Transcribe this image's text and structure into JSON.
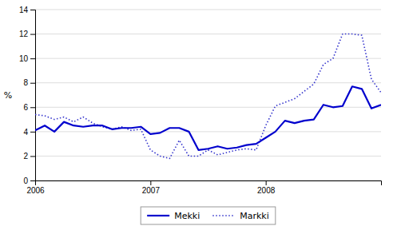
{
  "chart_data": {
    "type": "line",
    "ylabel": "%",
    "x": [
      2006,
      2006.0833333333333,
      2006.1666666666667,
      2006.25,
      2006.3333333333333,
      2006.4166666666667,
      2006.5,
      2006.5833333333333,
      2006.6666666666667,
      2006.75,
      2006.8333333333333,
      2006.9166666666667,
      2007,
      2007.0833333333333,
      2007.1666666666667,
      2007.25,
      2007.3333333333333,
      2007.4166666666667,
      2007.5,
      2007.5833333333333,
      2007.6666666666667,
      2007.75,
      2007.8333333333333,
      2007.9166666666667,
      2008,
      2008.0833333333333,
      2008.1666666666667,
      2008.25,
      2008.3333333333333,
      2008.4166666666667,
      2008.5,
      2008.5833333333333,
      2008.6666666666667,
      2008.75,
      2008.8333333333333,
      2008.9166666666667,
      2009
    ],
    "series": [
      {
        "name": "Mekki",
        "color": "#0000cd",
        "line_style": "solid",
        "values": [
          4.1,
          4.5,
          4.0,
          4.8,
          4.5,
          4.4,
          4.5,
          4.5,
          4.2,
          4.3,
          4.3,
          4.4,
          3.8,
          3.9,
          4.3,
          4.3,
          4.0,
          2.5,
          2.6,
          2.8,
          2.6,
          2.7,
          2.9,
          3.0,
          3.5,
          4.0,
          4.9,
          4.7,
          4.9,
          5.0,
          6.2,
          6.0,
          6.1,
          7.7,
          7.5,
          5.9,
          6.2
        ]
      },
      {
        "name": "Markki",
        "color": "#3333cc",
        "line_style": "dotted",
        "values": [
          5.4,
          5.3,
          5.0,
          5.2,
          4.8,
          5.2,
          4.7,
          4.4,
          4.2,
          4.4,
          4.1,
          4.2,
          2.5,
          2.0,
          1.8,
          3.3,
          2.0,
          2.0,
          2.5,
          2.1,
          2.3,
          2.5,
          2.6,
          2.5,
          4.5,
          6.1,
          6.4,
          6.7,
          7.3,
          7.9,
          9.5,
          10.0,
          12.0,
          12.0,
          11.9,
          8.3,
          7.2
        ]
      }
    ],
    "xlim": [
      2006,
      2009
    ],
    "xticks": [
      2006,
      2007,
      2008
    ],
    "ylim": [
      0,
      14
    ],
    "yticks": [
      0,
      2,
      4,
      6,
      8,
      10,
      12,
      14
    ],
    "grid": true,
    "legend": "bottom"
  }
}
